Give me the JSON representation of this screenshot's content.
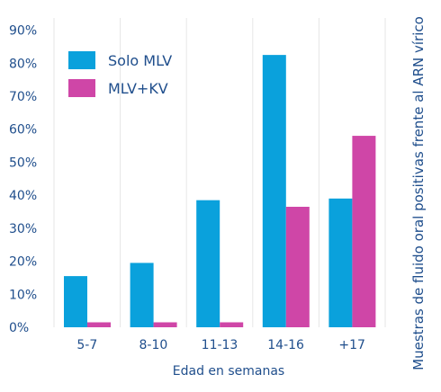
{
  "chart_data": {
    "type": "bar",
    "title": "",
    "xlabel": "Edad en semanas",
    "ylabel": "Muestras de fluido oral positivas frente al ARN vírico",
    "categories": [
      "5-7",
      "8-10",
      "11-13",
      "14-16",
      "+17"
    ],
    "ylim": [
      0,
      90
    ],
    "yticks": [
      "0%",
      "10%",
      "20%",
      "30%",
      "40%",
      "50%",
      "60%",
      "70%",
      "80%",
      "90%"
    ],
    "grid": "vertical",
    "legend_position": "top-left",
    "series": [
      {
        "name": "Solo MLV",
        "color": "#0aa1dc",
        "values": [
          15.5,
          19.5,
          38.5,
          82.5,
          39
        ]
      },
      {
        "name": "MLV+KV",
        "color": "#cf46a7",
        "values": [
          1.5,
          1.5,
          1.5,
          36.5,
          58
        ]
      }
    ]
  }
}
